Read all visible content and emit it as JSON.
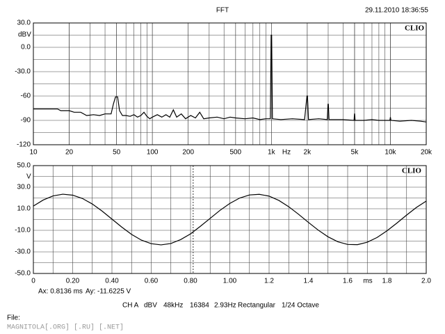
{
  "timestamp": "29.11.2010 18:36:55",
  "status": [
    "CH A",
    "dBV",
    "48kHz",
    "16384",
    "2.93Hz",
    "Rectangular",
    "1/24 Octave"
  ],
  "file_label": "File:",
  "watermark": "MAGNITOLA[.ORG] [.RU] [.NET]",
  "chart_data": [
    {
      "type": "line",
      "title": "FFT",
      "ylabel": "dBV",
      "xlabel": "Hz",
      "logo": "CLIO",
      "log_x": true,
      "grid": true,
      "color": "#000000",
      "xlim": [
        10,
        20000
      ],
      "ylim": [
        -120,
        30
      ],
      "xticks": [
        10,
        20,
        50,
        100,
        200,
        500,
        {
          "value": 1000,
          "label": "1k"
        },
        {
          "value": 2000,
          "label": "2k"
        },
        {
          "value": 5000,
          "label": "5k"
        },
        {
          "value": 10000,
          "label": "10k"
        },
        {
          "value": 20000,
          "label": "20k"
        }
      ],
      "yticks": [
        {
          "value": 30,
          "label": "30.0"
        },
        {
          "value": 0,
          "label": "0.0"
        },
        {
          "value": -30,
          "label": "-30.0"
        },
        -60,
        -90,
        -120
      ],
      "x": [
        10,
        12,
        14,
        16,
        17,
        20,
        22,
        25,
        28,
        32,
        36,
        40,
        45,
        47,
        49,
        51,
        53,
        56,
        60,
        65,
        70,
        75,
        80,
        85,
        90,
        95,
        100,
        110,
        120,
        130,
        140,
        150,
        160,
        175,
        190,
        210,
        230,
        250,
        270,
        300,
        350,
        400,
        450,
        500,
        600,
        700,
        800,
        900,
        980,
        995,
        1005,
        1020,
        1200,
        1500,
        1900,
        1990,
        2010,
        2050,
        2500,
        2950,
        2990,
        3010,
        3050,
        4000,
        4950,
        4990,
        5010,
        5050,
        6000,
        7000,
        8000,
        9900,
        10000,
        10100,
        12000,
        15000,
        18000,
        20000
      ],
      "values": [
        -76,
        -76,
        -76,
        -76,
        -78,
        -78,
        -80,
        -80,
        -84,
        -83,
        -84,
        -82,
        -82,
        -70,
        -61,
        -61,
        -78,
        -84,
        -84,
        -85,
        -83,
        -86,
        -84,
        -80,
        -85,
        -88,
        -86,
        -83,
        -86,
        -83,
        -86,
        -77,
        -86,
        -82,
        -88,
        -84,
        -87,
        -80,
        -88,
        -87,
        -86,
        -88,
        -86,
        -87,
        -88,
        -87,
        -89,
        -88,
        -88,
        15,
        15,
        -88,
        -89,
        -88,
        -89,
        -60,
        -60,
        -89,
        -88,
        -89,
        -70,
        -70,
        -89,
        -89,
        -90,
        -82,
        -82,
        -90,
        -90,
        -89,
        -90,
        -90,
        -86,
        -90,
        -91,
        -90,
        -91,
        -92
      ]
    },
    {
      "type": "line",
      "ylabel": "V",
      "xlabel": "ms",
      "logo": "CLIO",
      "grid": true,
      "color": "#000000",
      "xlim": [
        0,
        2.0
      ],
      "ylim": [
        -50,
        50
      ],
      "xticks": [
        0,
        {
          "value": 0.2,
          "label": "0.20"
        },
        {
          "value": 0.4,
          "label": "0.40"
        },
        {
          "value": 0.6,
          "label": "0.60"
        },
        {
          "value": 0.8,
          "label": "0.80"
        },
        {
          "value": 1,
          "label": "1.00"
        },
        1.2,
        1.4,
        1.6,
        1.8,
        {
          "value": 2,
          "label": "2.0"
        }
      ],
      "yticks": [
        {
          "value": 50,
          "label": "50.0"
        },
        {
          "value": 30,
          "label": "30.0"
        },
        {
          "value": 10,
          "label": "10.0"
        },
        {
          "value": -10,
          "label": "-10.0"
        },
        {
          "value": -30,
          "label": "-30.0"
        },
        {
          "value": -50,
          "label": "-50.0"
        }
      ],
      "cursor_x": 0.8136,
      "cursor_labels": [
        "Ax: 0.8136 ms",
        "Ay: -11.6225 V"
      ],
      "x": [
        0,
        0.05,
        0.1,
        0.15,
        0.2,
        0.25,
        0.3,
        0.35,
        0.4,
        0.45,
        0.5,
        0.55,
        0.6,
        0.65,
        0.7,
        0.75,
        0.8,
        0.85,
        0.9,
        0.95,
        1,
        1.05,
        1.1,
        1.15,
        1.2,
        1.25,
        1.3,
        1.35,
        1.4,
        1.45,
        1.5,
        1.55,
        1.6,
        1.65,
        1.7,
        1.75,
        1.8,
        1.85,
        1.9,
        1.95,
        2
      ],
      "values": [
        12.5,
        18.1,
        21.9,
        23.5,
        22.6,
        19.5,
        14.4,
        7.8,
        0.4,
        -7.0,
        -13.8,
        -19.1,
        -22.4,
        -23.5,
        -22.2,
        -18.6,
        -13.3,
        -6.3,
        1.1,
        8.5,
        14.9,
        19.9,
        22.8,
        23.4,
        21.7,
        17.7,
        11.9,
        4.9,
        -2.6,
        -9.8,
        -16.0,
        -20.6,
        -23.1,
        -23.3,
        -21.0,
        -16.6,
        -10.5,
        -3.4,
        4.1,
        11.2,
        17.1
      ]
    }
  ]
}
